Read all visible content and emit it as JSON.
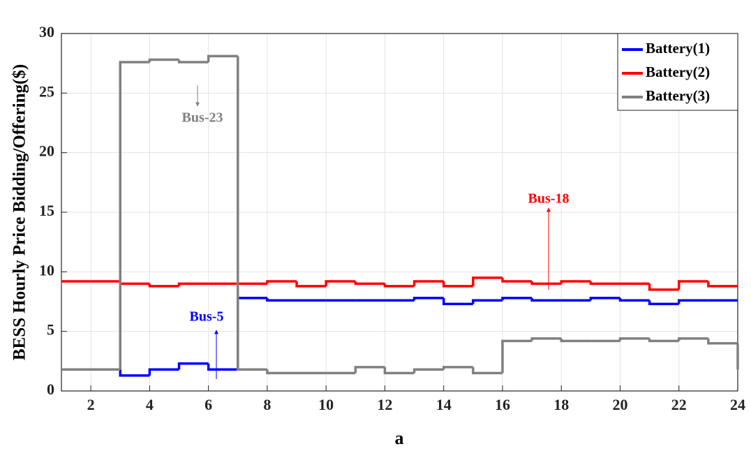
{
  "chart_data": {
    "type": "step",
    "step": "post",
    "x_label": "a",
    "y_label": "BESS Hourly Price Bidding/Offering($)",
    "x": [
      1,
      2,
      3,
      4,
      5,
      6,
      7,
      8,
      9,
      10,
      11,
      12,
      13,
      14,
      15,
      16,
      17,
      18,
      19,
      20,
      21,
      22,
      23,
      24
    ],
    "series": [
      {
        "name": "Battery(1)",
        "color": "#0000ff",
        "values": [
          1.8,
          1.8,
          1.3,
          1.8,
          2.3,
          1.8,
          7.8,
          7.6,
          7.6,
          7.6,
          7.6,
          7.6,
          7.8,
          7.3,
          7.6,
          7.8,
          7.6,
          7.6,
          7.8,
          7.6,
          7.3,
          7.6,
          7.6,
          7.6
        ]
      },
      {
        "name": "Battery(2)",
        "color": "#ff0000",
        "values": [
          9.2,
          9.2,
          9.0,
          8.8,
          9.0,
          9.0,
          9.0,
          9.2,
          8.8,
          9.2,
          9.0,
          8.8,
          9.2,
          8.8,
          9.5,
          9.2,
          9.0,
          9.2,
          9.0,
          9.0,
          8.5,
          9.2,
          8.8,
          8.8
        ]
      },
      {
        "name": "Battery(3)",
        "color": "#808080",
        "values": [
          1.8,
          1.8,
          27.6,
          27.8,
          27.6,
          28.1,
          1.8,
          1.5,
          1.5,
          1.5,
          2.0,
          1.5,
          1.8,
          2.0,
          1.5,
          4.2,
          4.4,
          4.2,
          4.2,
          4.4,
          4.2,
          4.4,
          4.0,
          1.8
        ]
      }
    ],
    "annotations": [
      "Bus-23",
      "Bus-18",
      "Bus-5"
    ],
    "xlim": [
      1,
      24
    ],
    "xticks": [
      2,
      4,
      6,
      8,
      10,
      12,
      14,
      16,
      18,
      20,
      22,
      24
    ],
    "ylim": [
      0,
      30
    ],
    "yticks": [
      0,
      5,
      10,
      15,
      20,
      25,
      30
    ],
    "grid": true,
    "legend": "upper right"
  }
}
